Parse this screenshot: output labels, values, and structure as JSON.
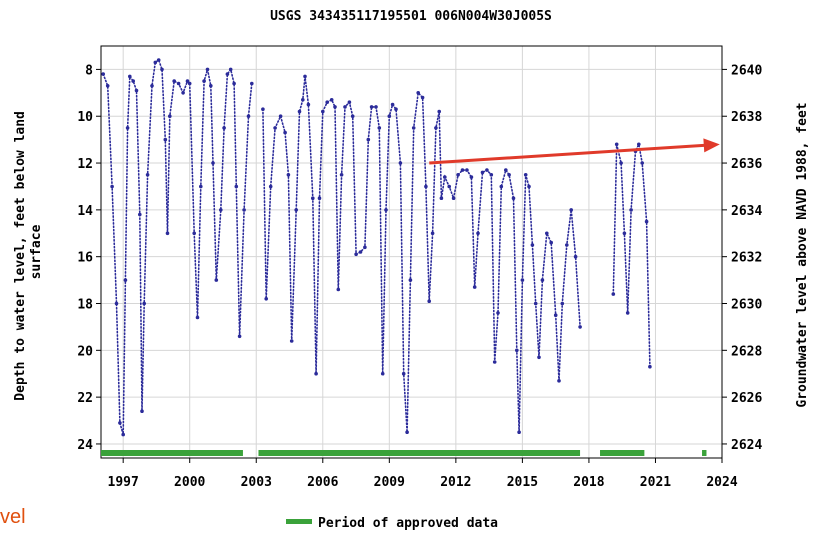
{
  "chart_data": {
    "type": "scatter",
    "title": "USGS 343435117195501 006N004W30J005S",
    "ylabel_left": "Depth to water level, feet below land surface",
    "ylabel_right": "Groundwater level above NAVD 1988, feet",
    "x_ticks": [
      "1997",
      "2000",
      "2003",
      "2006",
      "2009",
      "2012",
      "2015",
      "2018",
      "2021",
      "2024"
    ],
    "xlim": [
      1996.0,
      2024.0
    ],
    "ylim_left": [
      24.6,
      7.0
    ],
    "y_ticks_left": [
      8,
      10,
      12,
      14,
      16,
      18,
      20,
      22,
      24
    ],
    "y_ticks_right": [
      2640,
      2638,
      2636,
      2634,
      2632,
      2630,
      2628,
      2626,
      2624
    ],
    "grid": true,
    "series": [
      {
        "color": "#2b2b9a",
        "points": [
          [
            1996.1,
            8.2
          ],
          [
            1996.3,
            8.7
          ],
          [
            1996.5,
            13.0
          ],
          [
            1996.7,
            18.0
          ],
          [
            1996.85,
            23.1
          ],
          [
            1997.0,
            23.6
          ],
          [
            1997.1,
            17.0
          ],
          [
            1997.2,
            10.5
          ],
          [
            1997.3,
            8.3
          ],
          [
            1997.45,
            8.5
          ],
          [
            1997.6,
            8.9
          ],
          [
            1997.75,
            14.2
          ],
          [
            1997.85,
            22.6
          ],
          [
            1997.95,
            18.0
          ],
          [
            1998.1,
            12.5
          ],
          [
            1998.3,
            8.7
          ],
          [
            1998.45,
            7.7
          ],
          [
            1998.6,
            7.6
          ],
          [
            1998.75,
            8.0
          ],
          [
            1998.9,
            11.0
          ],
          [
            1999.0,
            15.0
          ],
          [
            1999.1,
            10.0
          ],
          [
            1999.3,
            8.5
          ],
          [
            1999.5,
            8.6
          ],
          [
            1999.7,
            9.0
          ],
          [
            1999.9,
            8.5
          ],
          [
            2000.0,
            8.6
          ],
          [
            2000.2,
            15.0
          ],
          [
            2000.35,
            18.6
          ],
          [
            2000.5,
            13.0
          ],
          [
            2000.65,
            8.5
          ],
          [
            2000.8,
            8.0
          ],
          [
            2000.95,
            8.7
          ],
          [
            2001.05,
            12.0
          ],
          [
            2001.2,
            17.0
          ],
          [
            2001.4,
            14.0
          ],
          [
            2001.55,
            10.5
          ],
          [
            2001.7,
            8.2
          ],
          [
            2001.85,
            8.0
          ],
          [
            2002.0,
            8.6
          ],
          [
            2002.1,
            13.0
          ],
          [
            2002.25,
            19.4
          ],
          [
            2002.45,
            14.0
          ],
          [
            2002.65,
            10.0
          ],
          [
            2002.8,
            8.6
          ],
          [
            2003.3,
            9.7
          ],
          [
            2003.45,
            17.8
          ],
          [
            2003.65,
            13.0
          ],
          [
            2003.85,
            10.5
          ],
          [
            2004.1,
            10.0
          ],
          [
            2004.3,
            10.7
          ],
          [
            2004.45,
            12.5
          ],
          [
            2004.6,
            19.6
          ],
          [
            2004.8,
            14.0
          ],
          [
            2004.95,
            9.8
          ],
          [
            2005.1,
            9.3
          ],
          [
            2005.2,
            8.3
          ],
          [
            2005.35,
            9.5
          ],
          [
            2005.55,
            13.5
          ],
          [
            2005.7,
            21.0
          ],
          [
            2005.85,
            13.5
          ],
          [
            2006.0,
            9.8
          ],
          [
            2006.2,
            9.4
          ],
          [
            2006.4,
            9.3
          ],
          [
            2006.55,
            9.6
          ],
          [
            2006.7,
            17.4
          ],
          [
            2006.85,
            12.5
          ],
          [
            2007.0,
            9.6
          ],
          [
            2007.2,
            9.4
          ],
          [
            2007.35,
            10.0
          ],
          [
            2007.5,
            15.9
          ],
          [
            2007.7,
            15.8
          ],
          [
            2007.9,
            15.6
          ],
          [
            2008.05,
            11.0
          ],
          [
            2008.2,
            9.6
          ],
          [
            2008.4,
            9.6
          ],
          [
            2008.55,
            10.5
          ],
          [
            2008.7,
            21.0
          ],
          [
            2008.85,
            14.0
          ],
          [
            2009.0,
            10.0
          ],
          [
            2009.15,
            9.5
          ],
          [
            2009.3,
            9.7
          ],
          [
            2009.5,
            12.0
          ],
          [
            2009.65,
            21.0
          ],
          [
            2009.8,
            23.5
          ],
          [
            2009.95,
            17.0
          ],
          [
            2010.1,
            10.5
          ],
          [
            2010.3,
            9.0
          ],
          [
            2010.5,
            9.2
          ],
          [
            2010.65,
            13.0
          ],
          [
            2010.8,
            17.9
          ],
          [
            2010.95,
            15.0
          ],
          [
            2011.1,
            10.5
          ],
          [
            2011.25,
            9.8
          ],
          [
            2011.35,
            13.5
          ],
          [
            2011.5,
            12.6
          ],
          [
            2011.7,
            13.0
          ],
          [
            2011.9,
            13.5
          ],
          [
            2012.1,
            12.5
          ],
          [
            2012.3,
            12.3
          ],
          [
            2012.5,
            12.3
          ],
          [
            2012.7,
            12.6
          ],
          [
            2012.85,
            17.3
          ],
          [
            2013.0,
            15.0
          ],
          [
            2013.2,
            12.4
          ],
          [
            2013.4,
            12.3
          ],
          [
            2013.6,
            12.5
          ],
          [
            2013.75,
            20.5
          ],
          [
            2013.9,
            18.4
          ],
          [
            2014.05,
            13.0
          ],
          [
            2014.25,
            12.3
          ],
          [
            2014.4,
            12.5
          ],
          [
            2014.6,
            13.5
          ],
          [
            2014.75,
            20.0
          ],
          [
            2014.85,
            23.5
          ],
          [
            2015.0,
            17.0
          ],
          [
            2015.15,
            12.5
          ],
          [
            2015.3,
            13.0
          ],
          [
            2015.45,
            15.5
          ],
          [
            2015.6,
            18.0
          ],
          [
            2015.75,
            20.3
          ],
          [
            2015.9,
            17.0
          ],
          [
            2016.1,
            15.0
          ],
          [
            2016.3,
            15.4
          ],
          [
            2016.5,
            18.5
          ],
          [
            2016.65,
            21.3
          ],
          [
            2016.8,
            18.0
          ],
          [
            2017.0,
            15.5
          ],
          [
            2017.2,
            14.0
          ],
          [
            2017.4,
            16.0
          ],
          [
            2017.6,
            19.0
          ],
          [
            2019.1,
            17.6
          ],
          [
            2019.25,
            11.2
          ],
          [
            2019.45,
            12.0
          ],
          [
            2019.6,
            15.0
          ],
          [
            2019.75,
            18.4
          ],
          [
            2019.9,
            14.0
          ],
          [
            2020.1,
            11.5
          ],
          [
            2020.25,
            11.2
          ],
          [
            2020.4,
            12.0
          ],
          [
            2020.6,
            14.5
          ],
          [
            2020.75,
            20.7
          ]
        ]
      }
    ],
    "trend_arrow": {
      "from": [
        2010.8,
        12.0
      ],
      "to": [
        2023.9,
        11.2
      ],
      "color": "#e03a2a"
    },
    "approved_periods": [
      [
        1996.0,
        2002.4
      ],
      [
        2003.1,
        2017.6
      ],
      [
        2018.5,
        2020.5
      ],
      [
        2023.1,
        2023.3
      ]
    ],
    "approved_color": "#3aa23a",
    "legend": {
      "label": "Period of approved data",
      "placement": "bottom-center"
    }
  },
  "corner_text": "vel"
}
